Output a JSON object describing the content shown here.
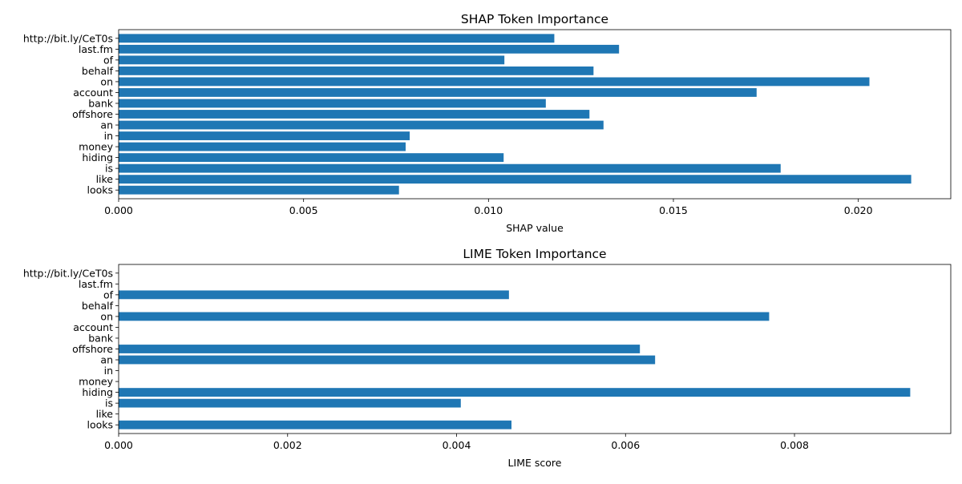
{
  "colors": {
    "bar": "#1f77b4",
    "axis": "#000000",
    "background": "#ffffff"
  },
  "chart_data": [
    {
      "type": "bar",
      "orientation": "horizontal",
      "title": "SHAP Token Importance",
      "xlabel": "SHAP value",
      "ylabel": "",
      "grid": false,
      "xlim": [
        0,
        0.0225
      ],
      "xticks": [
        0.0,
        0.005,
        0.01,
        0.015,
        0.02
      ],
      "xtick_labels": [
        "0.000",
        "0.005",
        "0.010",
        "0.015",
        "0.020"
      ],
      "categories": [
        "http://bit.ly/CeT0s",
        "last.fm",
        "of",
        "behalf",
        "on",
        "account",
        "bank",
        "offshore",
        "an",
        "in",
        "money",
        "hiding",
        "is",
        "like",
        "looks"
      ],
      "values": [
        0.01178,
        0.01353,
        0.01043,
        0.01284,
        0.0203,
        0.01725,
        0.01155,
        0.01273,
        0.01311,
        0.00787,
        0.00776,
        0.01041,
        0.0179,
        0.02143,
        0.00758
      ]
    },
    {
      "type": "bar",
      "orientation": "horizontal",
      "title": "LIME Token Importance",
      "xlabel": "LIME score",
      "ylabel": "",
      "grid": false,
      "xlim": [
        0,
        0.00985
      ],
      "xticks": [
        0.0,
        0.002,
        0.004,
        0.006,
        0.008
      ],
      "xtick_labels": [
        "0.000",
        "0.002",
        "0.004",
        "0.006",
        "0.008"
      ],
      "categories": [
        "http://bit.ly/CeT0s",
        "last.fm",
        "of",
        "behalf",
        "on",
        "account",
        "bank",
        "offshore",
        "an",
        "in",
        "money",
        "hiding",
        "is",
        "like",
        "looks"
      ],
      "values": [
        0,
        0,
        0.00462,
        0,
        0.0077,
        0,
        0,
        0.00617,
        0.00635,
        0,
        0,
        0.00937,
        0.00405,
        0,
        0.00465
      ]
    }
  ]
}
